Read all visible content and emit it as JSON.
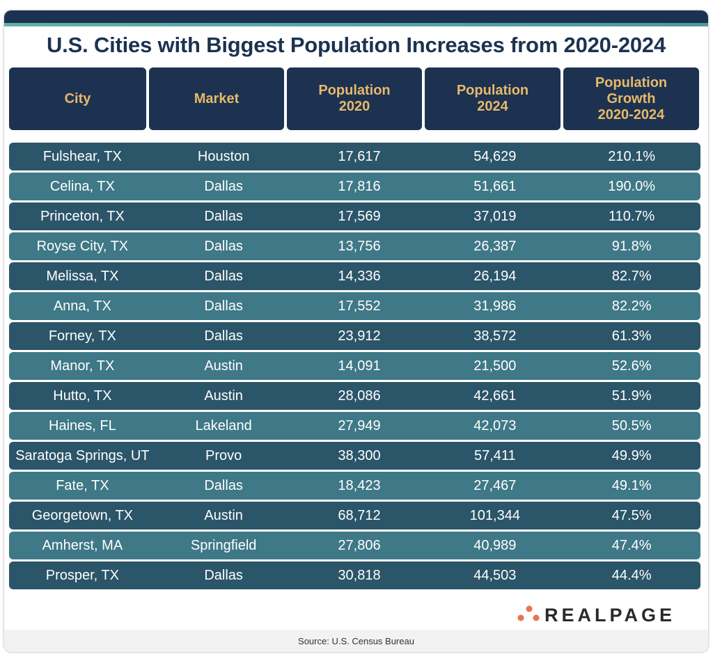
{
  "title": "U.S. Cities with Biggest Population Increases from 2020-2024",
  "source": "Source: U.S. Census Bureau",
  "logo": "REALPAGE",
  "colors": {
    "header_bg": "#1c3250",
    "header_text": "#e8b86a",
    "row_dark": "#2b5569",
    "row_light": "#3f7886",
    "logo_dots": "#e8734f"
  },
  "chart_data": {
    "type": "table",
    "columns": [
      "City",
      "Market",
      "Population\n2020",
      "Population\n2024",
      "Population\nGrowth\n2020-2024"
    ],
    "rows": [
      [
        "Fulshear, TX",
        "Houston",
        "17,617",
        "54,629",
        "210.1%"
      ],
      [
        "Celina, TX",
        "Dallas",
        "17,816",
        "51,661",
        "190.0%"
      ],
      [
        "Princeton, TX",
        "Dallas",
        "17,569",
        "37,019",
        "110.7%"
      ],
      [
        "Royse City, TX",
        "Dallas",
        "13,756",
        "26,387",
        "91.8%"
      ],
      [
        "Melissa, TX",
        "Dallas",
        "14,336",
        "26,194",
        "82.7%"
      ],
      [
        "Anna, TX",
        "Dallas",
        "17,552",
        "31,986",
        "82.2%"
      ],
      [
        "Forney, TX",
        "Dallas",
        "23,912",
        "38,572",
        "61.3%"
      ],
      [
        "Manor, TX",
        "Austin",
        "14,091",
        "21,500",
        "52.6%"
      ],
      [
        "Hutto, TX",
        "Austin",
        "28,086",
        "42,661",
        "51.9%"
      ],
      [
        "Haines, FL",
        "Lakeland",
        "27,949",
        "42,073",
        "50.5%"
      ],
      [
        "Saratoga Springs, UT",
        "Provo",
        "38,300",
        "57,411",
        "49.9%"
      ],
      [
        "Fate, TX",
        "Dallas",
        "18,423",
        "27,467",
        "49.1%"
      ],
      [
        "Georgetown, TX",
        "Austin",
        "68,712",
        "101,344",
        "47.5%"
      ],
      [
        "Amherst, MA",
        "Springfield",
        "27,806",
        "40,989",
        "47.4%"
      ],
      [
        "Prosper, TX",
        "Dallas",
        "30,818",
        "44,503",
        "44.4%"
      ]
    ]
  }
}
